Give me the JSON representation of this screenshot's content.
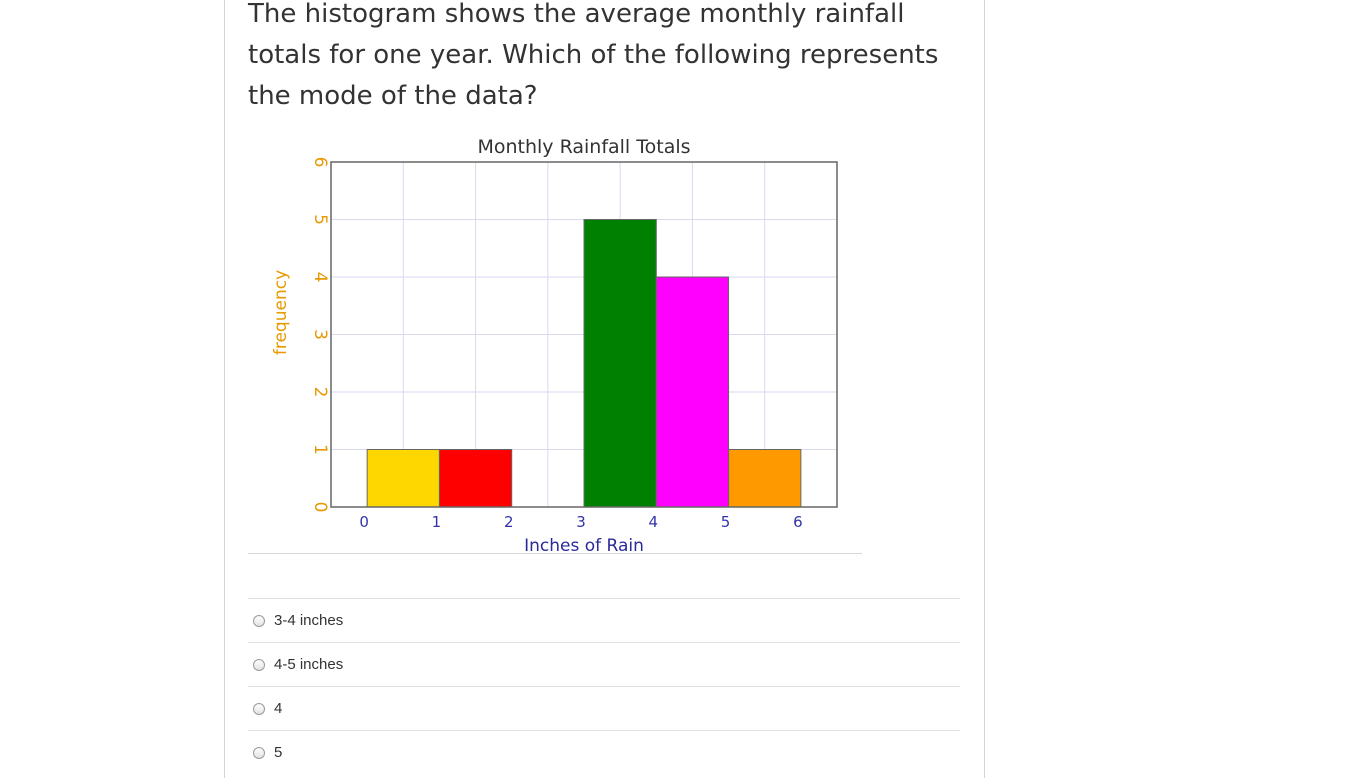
{
  "question": {
    "text": "The histogram shows the average monthly rainfall totals for one year.  Which of the following represents the mode of the data?"
  },
  "chart_data": {
    "type": "bar",
    "title": "Monthly Rainfall Totals",
    "xlabel": "Inches of Rain",
    "ylabel": "frequency",
    "bins": [
      [
        0,
        1
      ],
      [
        1,
        2
      ],
      [
        2,
        3
      ],
      [
        3,
        4
      ],
      [
        4,
        5
      ],
      [
        5,
        6
      ]
    ],
    "values": [
      1,
      1,
      0,
      5,
      4,
      1
    ],
    "colors": [
      "#ffd700",
      "#ff0000",
      "#ffffff",
      "#008000",
      "#ff00ff",
      "#ff9900"
    ],
    "xticks": [
      "0",
      "1",
      "2",
      "3",
      "4",
      "5",
      "6"
    ],
    "yticks": [
      "0",
      "1",
      "2",
      "3",
      "4",
      "5",
      "6"
    ],
    "xlim": [
      -0.5,
      6.5
    ],
    "ylim": [
      0,
      6
    ],
    "grid": true,
    "xtick_color": "#3333aa",
    "ytick_color": "#e69900",
    "ylabel_color": "#e69900",
    "xlabel_color": "#2a2a99"
  },
  "options": [
    {
      "label": "3-4 inches"
    },
    {
      "label": "4-5 inches"
    },
    {
      "label": "4"
    },
    {
      "label": "5"
    }
  ]
}
